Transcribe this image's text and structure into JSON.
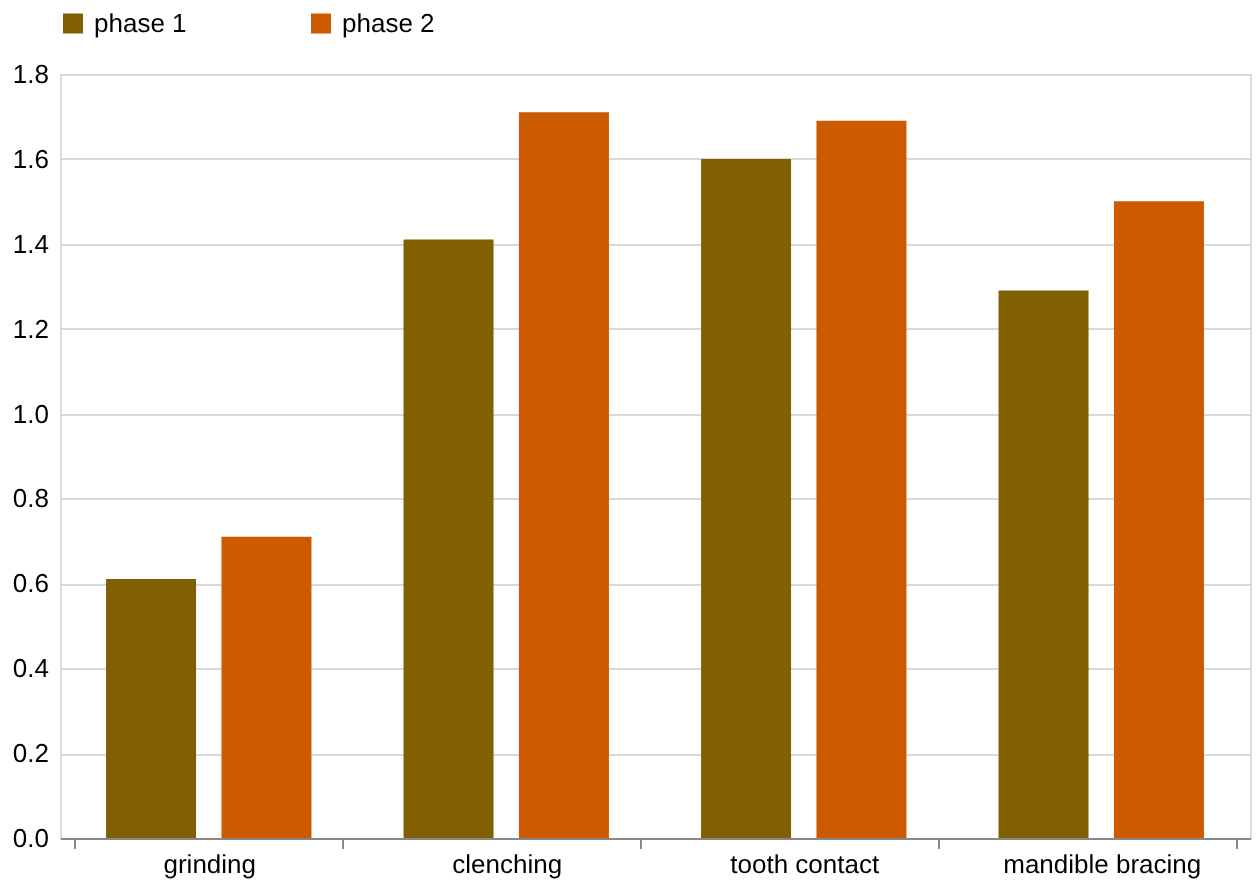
{
  "chart_data": {
    "type": "bar",
    "categories": [
      "grinding",
      "clenching",
      "tooth contact",
      "mandible bracing"
    ],
    "series": [
      {
        "name": "phase 1",
        "color": "#806000",
        "values": [
          0.61,
          1.41,
          1.6,
          1.29
        ]
      },
      {
        "name": "phase 2",
        "color": "#cc5a00",
        "values": [
          0.71,
          1.71,
          1.69,
          1.5
        ]
      }
    ],
    "ylim": [
      0,
      1.8
    ],
    "yticks": [
      {
        "value": 0,
        "label": "0.0"
      },
      {
        "value": 0.2,
        "label": "0.2"
      },
      {
        "value": 0.4,
        "label": "0.4"
      },
      {
        "value": 0.6,
        "label": "0.6"
      },
      {
        "value": 0.8,
        "label": "0.8"
      },
      {
        "value": 1.0,
        "label": "1.0"
      },
      {
        "value": 1.2,
        "label": "1.2"
      },
      {
        "value": 1.4,
        "label": "1.4"
      },
      {
        "value": 1.6,
        "label": "1.6"
      },
      {
        "value": 1.8,
        "label": "1.8"
      }
    ],
    "grid": "y",
    "legend": "top"
  }
}
